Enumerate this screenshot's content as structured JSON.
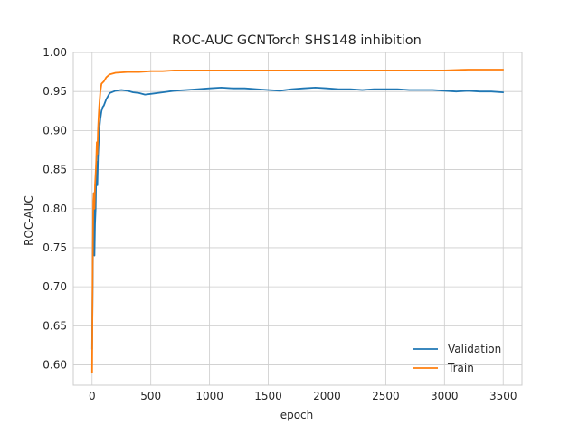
{
  "chart_data": {
    "type": "line",
    "title": "ROC-AUC GCNTorch SHS148 inhibition",
    "xlabel": "epoch",
    "ylabel": "ROC-AUC",
    "xlim": [
      -160,
      3660
    ],
    "ylim": [
      0.574,
      1.0
    ],
    "xticks": [
      0,
      500,
      1000,
      1500,
      2000,
      2500,
      3000,
      3500
    ],
    "yticks": [
      0.6,
      0.65,
      0.7,
      0.75,
      0.8,
      0.85,
      0.9,
      0.95,
      1.0
    ],
    "xtick_labels": [
      "0",
      "500",
      "1000",
      "1500",
      "2000",
      "2500",
      "3000",
      "3500"
    ],
    "ytick_labels": [
      "0.60",
      "0.65",
      "0.70",
      "0.75",
      "0.80",
      "0.85",
      "0.90",
      "0.95",
      "1.00"
    ],
    "grid": true,
    "legend_position": "lower-right",
    "series": [
      {
        "name": "Validation",
        "color": "#1f77b4",
        "x": [
          0,
          5,
          10,
          15,
          20,
          25,
          30,
          35,
          40,
          45,
          50,
          55,
          60,
          70,
          80,
          90,
          100,
          120,
          150,
          200,
          250,
          300,
          350,
          400,
          450,
          500,
          600,
          700,
          800,
          900,
          1000,
          1100,
          1200,
          1300,
          1400,
          1500,
          1600,
          1700,
          1800,
          1900,
          2000,
          2100,
          2200,
          2300,
          2400,
          2500,
          2600,
          2700,
          2800,
          2900,
          3000,
          3100,
          3200,
          3300,
          3400,
          3500
        ],
        "y": [
          0.62,
          0.7,
          0.79,
          0.82,
          0.74,
          0.78,
          0.8,
          0.84,
          0.86,
          0.83,
          0.865,
          0.88,
          0.9,
          0.915,
          0.925,
          0.93,
          0.932,
          0.94,
          0.948,
          0.951,
          0.952,
          0.951,
          0.949,
          0.948,
          0.946,
          0.947,
          0.949,
          0.951,
          0.952,
          0.953,
          0.954,
          0.955,
          0.954,
          0.954,
          0.953,
          0.952,
          0.951,
          0.953,
          0.954,
          0.955,
          0.954,
          0.953,
          0.953,
          0.952,
          0.953,
          0.953,
          0.953,
          0.952,
          0.952,
          0.952,
          0.951,
          0.95,
          0.951,
          0.95,
          0.95,
          0.949
        ]
      },
      {
        "name": "Train",
        "color": "#ff7f0e",
        "x": [
          0,
          5,
          10,
          15,
          20,
          25,
          30,
          35,
          40,
          45,
          50,
          55,
          60,
          70,
          80,
          100,
          120,
          150,
          200,
          300,
          400,
          500,
          600,
          700,
          800,
          900,
          1000,
          1200,
          1400,
          1600,
          1800,
          2000,
          2200,
          2400,
          2600,
          2800,
          3000,
          3200,
          3400,
          3500
        ],
        "y": [
          0.59,
          0.72,
          0.81,
          0.82,
          0.8,
          0.83,
          0.845,
          0.86,
          0.885,
          0.87,
          0.9,
          0.915,
          0.93,
          0.95,
          0.96,
          0.963,
          0.968,
          0.972,
          0.974,
          0.975,
          0.975,
          0.976,
          0.976,
          0.977,
          0.977,
          0.977,
          0.977,
          0.977,
          0.977,
          0.977,
          0.977,
          0.977,
          0.977,
          0.977,
          0.977,
          0.977,
          0.977,
          0.978,
          0.978,
          0.978
        ]
      }
    ]
  }
}
